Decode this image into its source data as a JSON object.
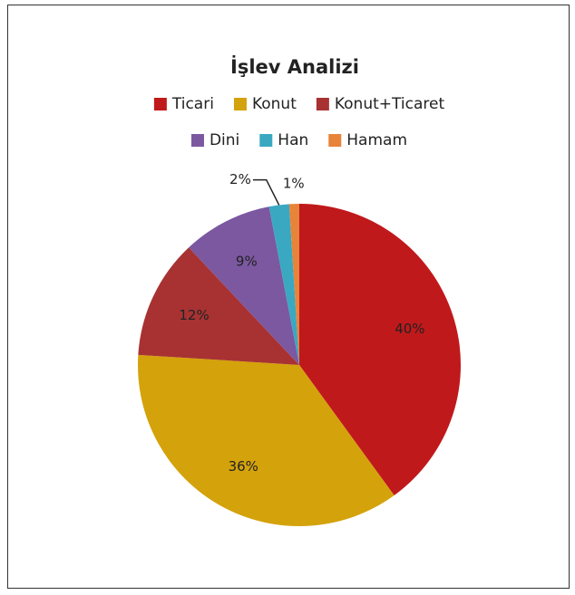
{
  "chart_data": {
    "type": "pie",
    "title": "İşlev Analizi",
    "categories": [
      "Ticari",
      "Konut",
      "Konut+Ticaret",
      "Dini",
      "Han",
      "Hamam"
    ],
    "values": [
      40,
      36,
      12,
      9,
      2,
      1
    ],
    "value_labels": [
      "40%",
      "36%",
      "12%",
      "9%",
      "2%",
      "1%"
    ],
    "colors": [
      "#c0191b",
      "#d4a20b",
      "#a83232",
      "#7b58a0",
      "#3aa8c1",
      "#e8833a"
    ],
    "legend": "top"
  }
}
